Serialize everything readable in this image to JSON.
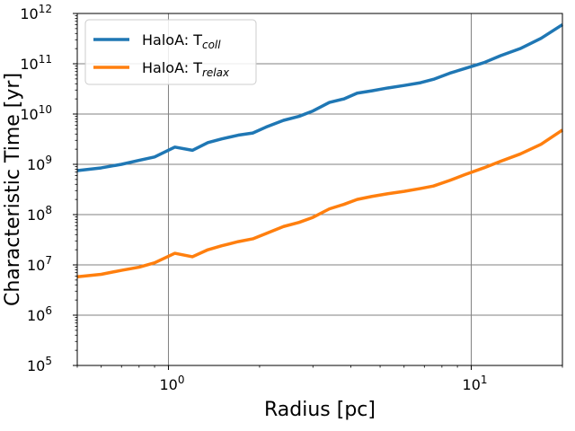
{
  "chart_data": {
    "type": "line",
    "xlabel": "Radius [pc]",
    "ylabel": "Characteristic Time [yr]",
    "xscale": "log",
    "yscale": "log",
    "xlim": [
      0.5,
      20
    ],
    "ylim": [
      100000,
      1000000000000
    ],
    "grid": true,
    "legend_position": "top-left",
    "x_ticks": [
      {
        "value": 1,
        "base": "10",
        "exp": "0"
      },
      {
        "value": 10,
        "base": "10",
        "exp": "1"
      }
    ],
    "y_ticks": [
      {
        "value": 100000,
        "base": "10",
        "exp": "5"
      },
      {
        "value": 1000000,
        "base": "10",
        "exp": "6"
      },
      {
        "value": 10000000,
        "base": "10",
        "exp": "7"
      },
      {
        "value": 100000000,
        "base": "10",
        "exp": "8"
      },
      {
        "value": 1000000000,
        "base": "10",
        "exp": "9"
      },
      {
        "value": 10000000000,
        "base": "10",
        "exp": "10"
      },
      {
        "value": 100000000000,
        "base": "10",
        "exp": "11"
      },
      {
        "value": 1000000000000,
        "base": "10",
        "exp": "12"
      }
    ],
    "series": [
      {
        "name": "HaloA: Tcoll",
        "legend_main": "HaloA: T",
        "legend_sub": "coll",
        "color": "#1f77b4",
        "x": [
          0.5,
          0.6,
          0.7,
          0.8,
          0.9,
          1.05,
          1.2,
          1.35,
          1.5,
          1.7,
          1.9,
          2.1,
          2.4,
          2.7,
          3.0,
          3.4,
          3.8,
          4.2,
          4.7,
          5.3,
          6.0,
          6.8,
          7.5,
          8.5,
          9.5,
          11,
          12.5,
          14.5,
          17,
          20
        ],
        "y": [
          750000000.0,
          850000000.0,
          1000000000.0,
          1200000000.0,
          1400000000.0,
          2200000000.0,
          1900000000.0,
          2700000000.0,
          3200000000.0,
          3800000000.0,
          4200000000.0,
          5500000000.0,
          7500000000.0,
          9000000000.0,
          11500000000.0,
          17000000000.0,
          20000000000.0,
          26000000000.0,
          29000000000.0,
          33000000000.0,
          37000000000.0,
          42000000000.0,
          49000000000.0,
          65000000000.0,
          80000000000.0,
          105000000000.0,
          145000000000.0,
          200000000000.0,
          320000000000.0,
          600000000000.0
        ]
      },
      {
        "name": "HaloA: Trelax",
        "legend_main": "HaloA: T",
        "legend_sub": "relax",
        "color": "#ff7f0e",
        "x": [
          0.5,
          0.6,
          0.7,
          0.8,
          0.9,
          1.05,
          1.2,
          1.35,
          1.5,
          1.7,
          1.9,
          2.1,
          2.4,
          2.7,
          3.0,
          3.4,
          3.8,
          4.2,
          4.7,
          5.3,
          6.0,
          6.8,
          7.5,
          8.5,
          9.5,
          11,
          12.5,
          14.5,
          17,
          20
        ],
        "y": [
          5800000.0,
          6500000.0,
          7800000.0,
          9000000.0,
          11000000.0,
          17000000.0,
          14500000.0,
          20000000.0,
          24000000.0,
          29000000.0,
          33000000.0,
          42000000.0,
          58000000.0,
          70000000.0,
          88000000.0,
          130000000.0,
          160000000.0,
          200000000.0,
          230000000.0,
          260000000.0,
          290000000.0,
          330000000.0,
          370000000.0,
          480000000.0,
          620000000.0,
          850000000.0,
          1150000000.0,
          1600000000.0,
          2500000000.0,
          4800000000.0
        ]
      }
    ]
  }
}
